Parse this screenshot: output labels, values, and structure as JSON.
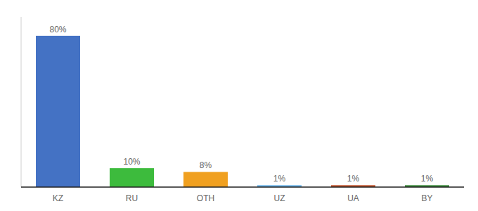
{
  "chart_data": {
    "type": "bar",
    "categories": [
      "KZ",
      "RU",
      "OTH",
      "UZ",
      "UA",
      "BY"
    ],
    "values": [
      80,
      10,
      8,
      1,
      1,
      1
    ],
    "value_labels": [
      "80%",
      "10%",
      "8%",
      "1%",
      "1%",
      "1%"
    ],
    "colors": [
      "#4472c4",
      "#3dbb3d",
      "#f0a020",
      "#6ab4e8",
      "#c0522a",
      "#3a8a3a"
    ],
    "ylim": [
      0,
      90
    ],
    "data_labels": true,
    "tick_labels": "x",
    "grid": false
  }
}
